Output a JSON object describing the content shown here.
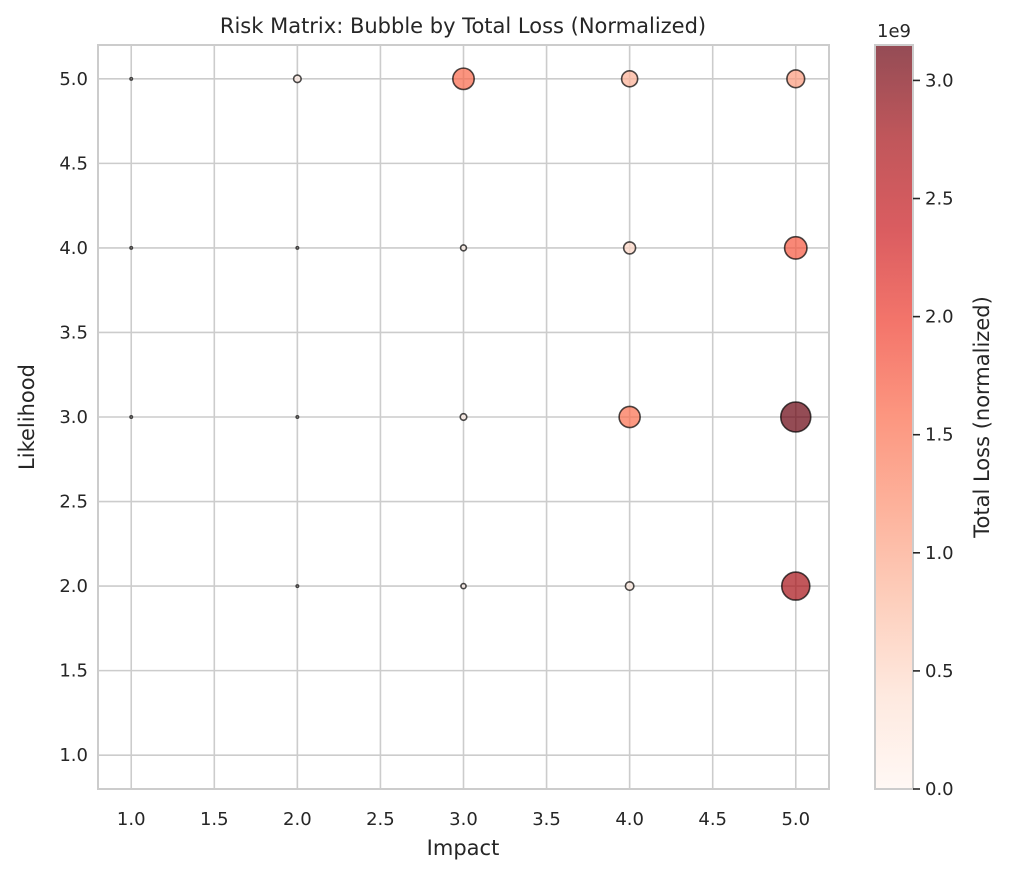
{
  "chart_data": {
    "type": "scatter",
    "title": "Risk Matrix: Bubble by Total Loss (Normalized)",
    "xlabel": "Impact",
    "ylabel": "Likelihood",
    "xlim": [
      0.8,
      5.2
    ],
    "ylim": [
      0.8,
      5.2
    ],
    "xticks": [
      "1.0",
      "1.5",
      "2.0",
      "2.5",
      "3.0",
      "3.5",
      "4.0",
      "4.5",
      "5.0"
    ],
    "yticks": [
      "1.0",
      "1.5",
      "2.0",
      "2.5",
      "3.0",
      "3.5",
      "4.0",
      "4.5",
      "5.0"
    ],
    "grid": true,
    "colorbar": {
      "label": "Total Loss (normalized)",
      "offset_text": "1e9",
      "range": [
        0,
        3150000000
      ],
      "ticks": [
        "0.0",
        "0.5",
        "1.0",
        "1.5",
        "2.0",
        "2.5",
        "3.0"
      ],
      "colormap": "Reds",
      "alpha": 0.7
    },
    "points": [
      {
        "x": 1,
        "y": 5,
        "value": 5000000
      },
      {
        "x": 1,
        "y": 4,
        "value": 2000000
      },
      {
        "x": 1,
        "y": 3,
        "value": 2000000
      },
      {
        "x": 2,
        "y": 5,
        "value": 200000000
      },
      {
        "x": 2,
        "y": 4,
        "value": 20000000
      },
      {
        "x": 2,
        "y": 3,
        "value": 20000000
      },
      {
        "x": 2,
        "y": 2,
        "value": 15000000
      },
      {
        "x": 3,
        "y": 5,
        "value": 1600000000
      },
      {
        "x": 3,
        "y": 4,
        "value": 120000000
      },
      {
        "x": 3,
        "y": 3,
        "value": 150000000
      },
      {
        "x": 3,
        "y": 2,
        "value": 90000000
      },
      {
        "x": 4,
        "y": 5,
        "value": 900000000
      },
      {
        "x": 4,
        "y": 4,
        "value": 500000000
      },
      {
        "x": 4,
        "y": 3,
        "value": 1550000000
      },
      {
        "x": 4,
        "y": 2,
        "value": 250000000
      },
      {
        "x": 5,
        "y": 5,
        "value": 1100000000
      },
      {
        "x": 5,
        "y": 4,
        "value": 1750000000
      },
      {
        "x": 5,
        "y": 3,
        "value": 3150000000
      },
      {
        "x": 5,
        "y": 2,
        "value": 2750000000
      }
    ]
  }
}
